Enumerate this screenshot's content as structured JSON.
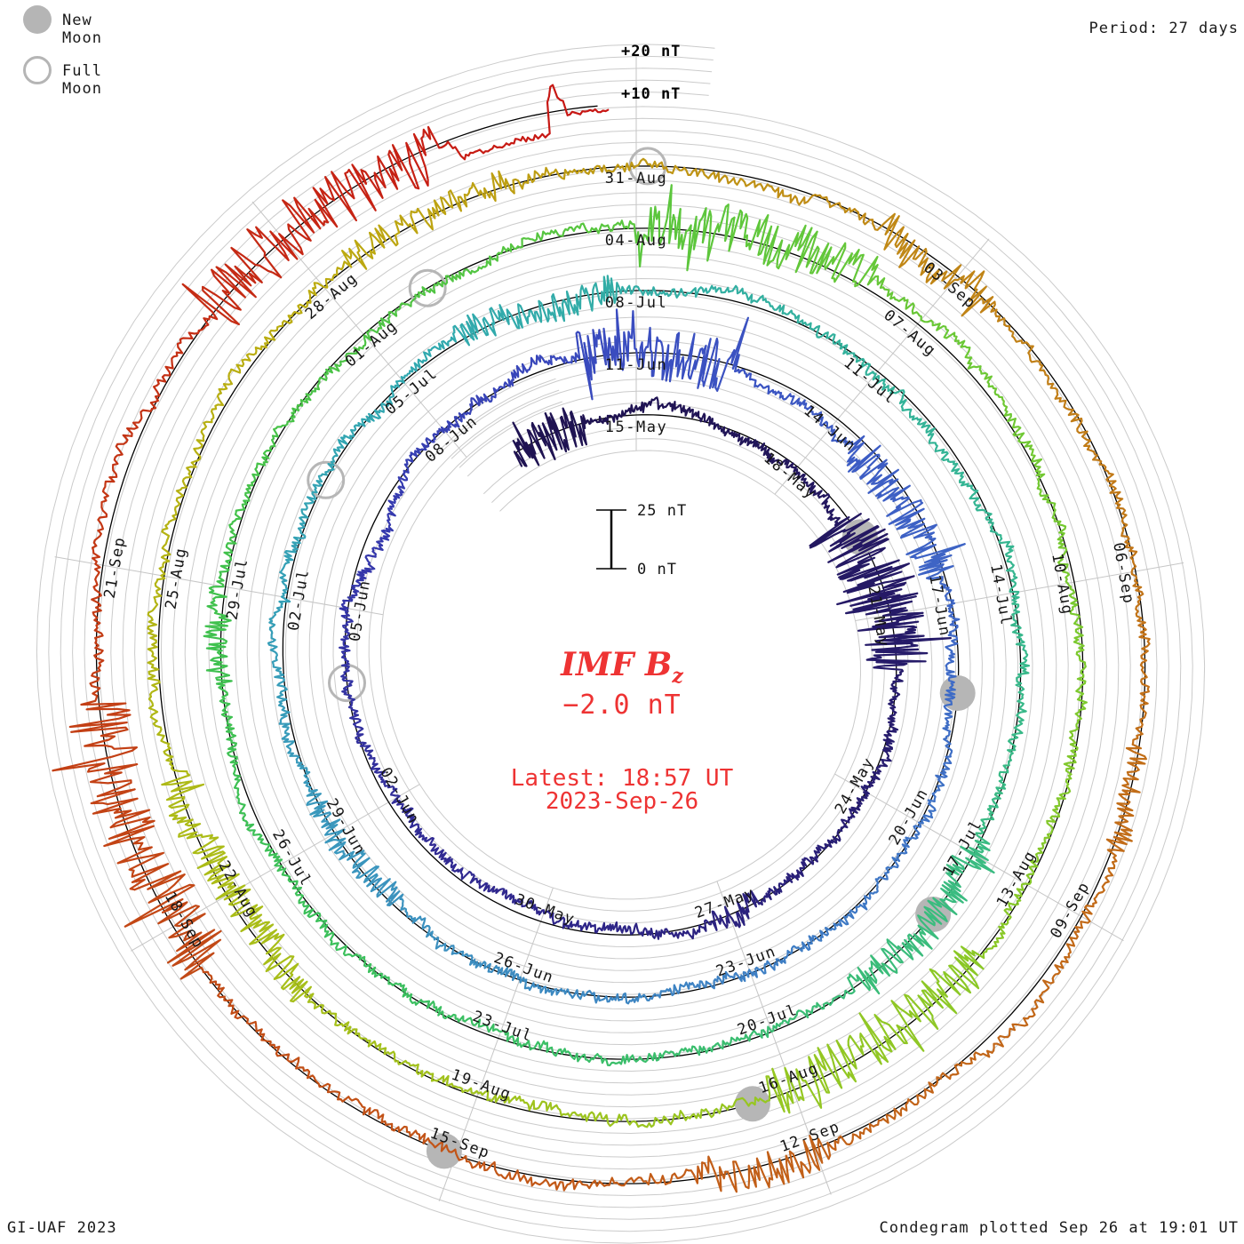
{
  "header": {
    "legend": [
      {
        "label": "New Moon",
        "symbol": "filled-circle",
        "color": "#b5b5b5"
      },
      {
        "label": "Full Moon",
        "symbol": "open-circle",
        "color": "#b5b5b5"
      }
    ],
    "period_label": "Period: 27 days"
  },
  "footer": {
    "credit": "GI-UAF 2023",
    "plotted": "Condegram plotted Sep 26 at 19:01 UT"
  },
  "center_annotation": {
    "title": "IMF B",
    "title_subscript": "z",
    "current_value": "−2.0 nT",
    "latest_time": "Latest: 18:57 UT",
    "latest_date": "2023-Sep-26"
  },
  "chart_data": {
    "type": "line",
    "form": "condegram (polar spiral time series, one rotation = 27 days, clockwise, time increases outward)",
    "parameter": "IMF Bz",
    "units": "nT",
    "period_days": 27,
    "start_reference_date": "2023-05-15",
    "data_start_day": -2.3,
    "data_end_day": 134.79,
    "data_end_label": "2023-Sep-26 18:57 UT",
    "latest_value_nT": -2.0,
    "rotation_top_dates": [
      "15-May",
      "11-Jun",
      "08-Jul",
      "04-Aug",
      "31-Aug"
    ],
    "label_interval_days": 3,
    "date_labels": [
      "15-May",
      "18-May",
      "21-May",
      "24-May",
      "27-May",
      "30-May",
      "02-Jun",
      "05-Jun",
      "08-Jun",
      "11-Jun",
      "14-Jun",
      "17-Jun",
      "20-Jun",
      "23-Jun",
      "26-Jun",
      "29-Jun",
      "02-Jul",
      "05-Jul",
      "08-Jul",
      "11-Jul",
      "14-Jul",
      "17-Jul",
      "20-Jul",
      "23-Jul",
      "26-Jul",
      "29-Jul",
      "01-Aug",
      "04-Aug",
      "07-Aug",
      "10-Aug",
      "13-Aug",
      "16-Aug",
      "19-Aug",
      "22-Aug",
      "25-Aug",
      "28-Aug",
      "31-Aug",
      "03-Sep",
      "06-Sep",
      "09-Sep",
      "12-Sep",
      "15-Sep",
      "18-Sep",
      "21-Sep"
    ],
    "scale_bar": {
      "top_label": "25 nT",
      "bottom_label": "0 nT",
      "nT_span": 25
    },
    "gridline_labels": [
      "+20 nT",
      "+10 nT"
    ],
    "gridline_step_nT": 5,
    "moon_events": {
      "new_moon_days": [
        4.6,
        34.2,
        63.8,
        93.4,
        123.1
      ],
      "new_moon_dates": [
        "2023-05-19",
        "2023-06-18",
        "2023-07-17",
        "2023-08-16",
        "2023-09-15"
      ],
      "full_moon_days": [
        19.9,
        49.5,
        78.8,
        108.1
      ],
      "full_moon_dates": [
        "2023-06-04",
        "2023-07-03",
        "2023-08-01",
        "2023-08-31"
      ]
    },
    "color_stops": [
      {
        "day": 0,
        "color": "#1f1352"
      },
      {
        "day": 8,
        "color": "#271c6e"
      },
      {
        "day": 16,
        "color": "#30288f"
      },
      {
        "day": 22,
        "color": "#3538ac"
      },
      {
        "day": 27,
        "color": "#3a4dc0"
      },
      {
        "day": 33,
        "color": "#3e66c6"
      },
      {
        "day": 39,
        "color": "#3e7fc4"
      },
      {
        "day": 45,
        "color": "#3a97bd"
      },
      {
        "day": 51,
        "color": "#31a8b0"
      },
      {
        "day": 57,
        "color": "#33b29b"
      },
      {
        "day": 63,
        "color": "#3abb82"
      },
      {
        "day": 69,
        "color": "#3abf63"
      },
      {
        "day": 75,
        "color": "#40c14c"
      },
      {
        "day": 81,
        "color": "#5ac63e"
      },
      {
        "day": 87,
        "color": "#78c930"
      },
      {
        "day": 93,
        "color": "#95c722"
      },
      {
        "day": 99,
        "color": "#abbd18"
      },
      {
        "day": 105,
        "color": "#bcab10"
      },
      {
        "day": 110,
        "color": "#c08a16"
      },
      {
        "day": 115,
        "color": "#c27018"
      },
      {
        "day": 120,
        "color": "#c26118"
      },
      {
        "day": 125,
        "color": "#c24d16"
      },
      {
        "day": 130,
        "color": "#c43414"
      },
      {
        "day": 135,
        "color": "#c81414"
      }
    ],
    "disturbed_intervals": [
      [
        -2.3,
        -0.9,
        9
      ],
      [
        4.2,
        6.9,
        14
      ],
      [
        11.5,
        12.3,
        5
      ],
      [
        26.2,
        28.4,
        11
      ],
      [
        30.4,
        32.6,
        8
      ],
      [
        43.8,
        45.6,
        5
      ],
      [
        51.8,
        53.8,
        6
      ],
      [
        62.8,
        65.0,
        7
      ],
      [
        74.0,
        75.0,
        5
      ],
      [
        81.0,
        83.4,
        10
      ],
      [
        90.8,
        93.2,
        10
      ],
      [
        97.8,
        100.2,
        7
      ],
      [
        105.3,
        107.0,
        6
      ],
      [
        110.2,
        111.4,
        8
      ],
      [
        115.5,
        116.5,
        5
      ],
      [
        119.8,
        121.0,
        7
      ],
      [
        125.6,
        127.9,
        13
      ],
      [
        131.2,
        133.4,
        12
      ]
    ],
    "end_sequence": {
      "plateau_start_day": 133.55,
      "plateau_end_day": 134.3,
      "plateau_nT": -9,
      "spike_day": 134.36,
      "spike_nT": 12,
      "final_nT": -2.0
    }
  }
}
